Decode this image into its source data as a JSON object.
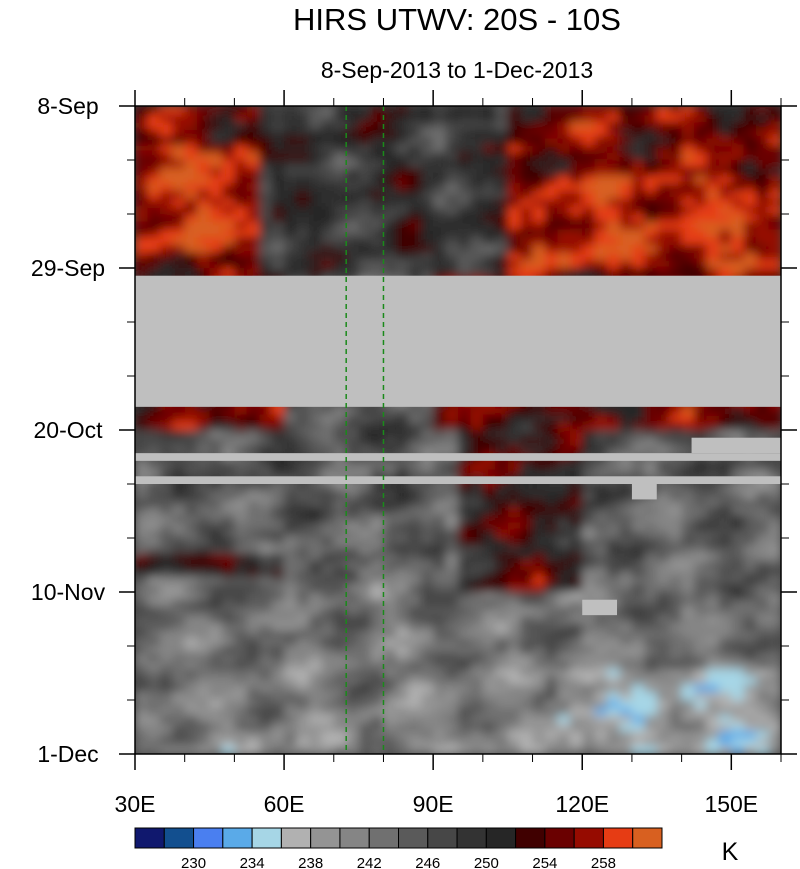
{
  "chart_data": {
    "type": "heatmap",
    "title": "HIRS UTWV: 20S - 10S",
    "subtitle": "8-Sep-2013 to 1-Dec-2013",
    "unit": "K",
    "x_axis": {
      "range": [
        30,
        160
      ],
      "ticks": [
        30,
        60,
        90,
        120,
        150
      ],
      "tick_labels": [
        "30E",
        "60E",
        "90E",
        "120E",
        "150E"
      ],
      "minor_step": 10
    },
    "y_axis": {
      "range": [
        "8-Sep-2013",
        "1-Dec-2013"
      ],
      "ticks": [
        "8-Sep-2013",
        "29-Sep-2013",
        "20-Oct-2013",
        "10-Nov-2013",
        "1-Dec-2013"
      ],
      "tick_labels": [
        "8-Sep",
        "29-Sep",
        "20-Oct",
        "10-Nov",
        "1-Dec"
      ],
      "direction": "time increases downward"
    },
    "reference_lines": [
      {
        "x": 72.5,
        "style": "dashed",
        "color": "#1a8a1a"
      },
      {
        "x": 80,
        "style": "dashed",
        "color": "#1a8a1a"
      }
    ],
    "missing_data": [
      {
        "from": "30-Sep-2013",
        "to": "17-Oct-2013",
        "lon": [
          30,
          160
        ]
      },
      {
        "from": "23-Oct-2013",
        "to": "24-Oct-2013",
        "lon": [
          30,
          160
        ]
      },
      {
        "from": "21-Oct-2013",
        "to": "23-Oct-2013",
        "lon": [
          142,
          160
        ]
      },
      {
        "from": "26-Oct-2013",
        "to": "27-Oct-2013",
        "lon": [
          30,
          160
        ]
      },
      {
        "from": "27-Oct-2013",
        "to": "29-Oct-2013",
        "lon": [
          130,
          135
        ]
      },
      {
        "from": "11-Nov-2013",
        "to": "13-Nov-2013",
        "lon": [
          120,
          127
        ]
      }
    ],
    "colorbar": {
      "levels": [
        228,
        230,
        232,
        234,
        236,
        238,
        240,
        242,
        244,
        246,
        248,
        250,
        252,
        254,
        256,
        258,
        260
      ],
      "labels": [
        "230",
        "234",
        "238",
        "242",
        "246",
        "250",
        "254",
        "258"
      ],
      "colors": [
        "#10186e",
        "#124f8f",
        "#4a7ff0",
        "#5aaae8",
        "#a6d6e6",
        "#b1b1b1",
        "#949494",
        "#858585",
        "#707070",
        "#5a5a5a",
        "#474747",
        "#333333",
        "#262626",
        "#400000",
        "#6a0000",
        "#960b00",
        "#e63c14",
        "#d86020"
      ]
    },
    "fields": [
      {
        "region": "8-Sep to 29-Sep",
        "description_values": "mostly 252-262 with darker 244-250 band near 60E-100E"
      },
      {
        "region": "18-Oct to 26-Oct",
        "values_range": [
          236,
          262
        ]
      },
      {
        "region": "28-Oct to 1-Dec",
        "values_range": [
          230,
          258
        ]
      }
    ]
  }
}
